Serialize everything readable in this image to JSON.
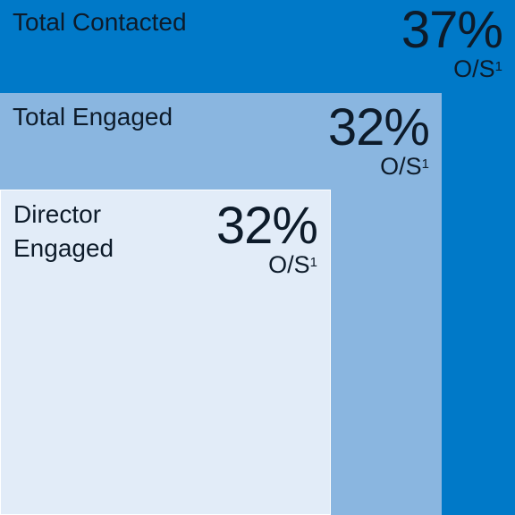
{
  "colors": {
    "contacted_fill": "#0079c8",
    "engaged_fill": "#8ab6e0",
    "director_fill": "#e2ecf8",
    "text": "#0d1b2a"
  },
  "boxes": [
    {
      "id": "contacted",
      "label_lines": [
        "Total Contacted"
      ],
      "percent": "37%",
      "os_text": "O/S",
      "footnote": "1"
    },
    {
      "id": "engaged",
      "label_lines": [
        "Total Engaged"
      ],
      "percent": "32%",
      "os_text": "O/S",
      "footnote": "1"
    },
    {
      "id": "director",
      "label_lines": [
        "Director",
        "Engaged"
      ],
      "percent": "32%",
      "os_text": "O/S",
      "footnote": "1"
    }
  ]
}
